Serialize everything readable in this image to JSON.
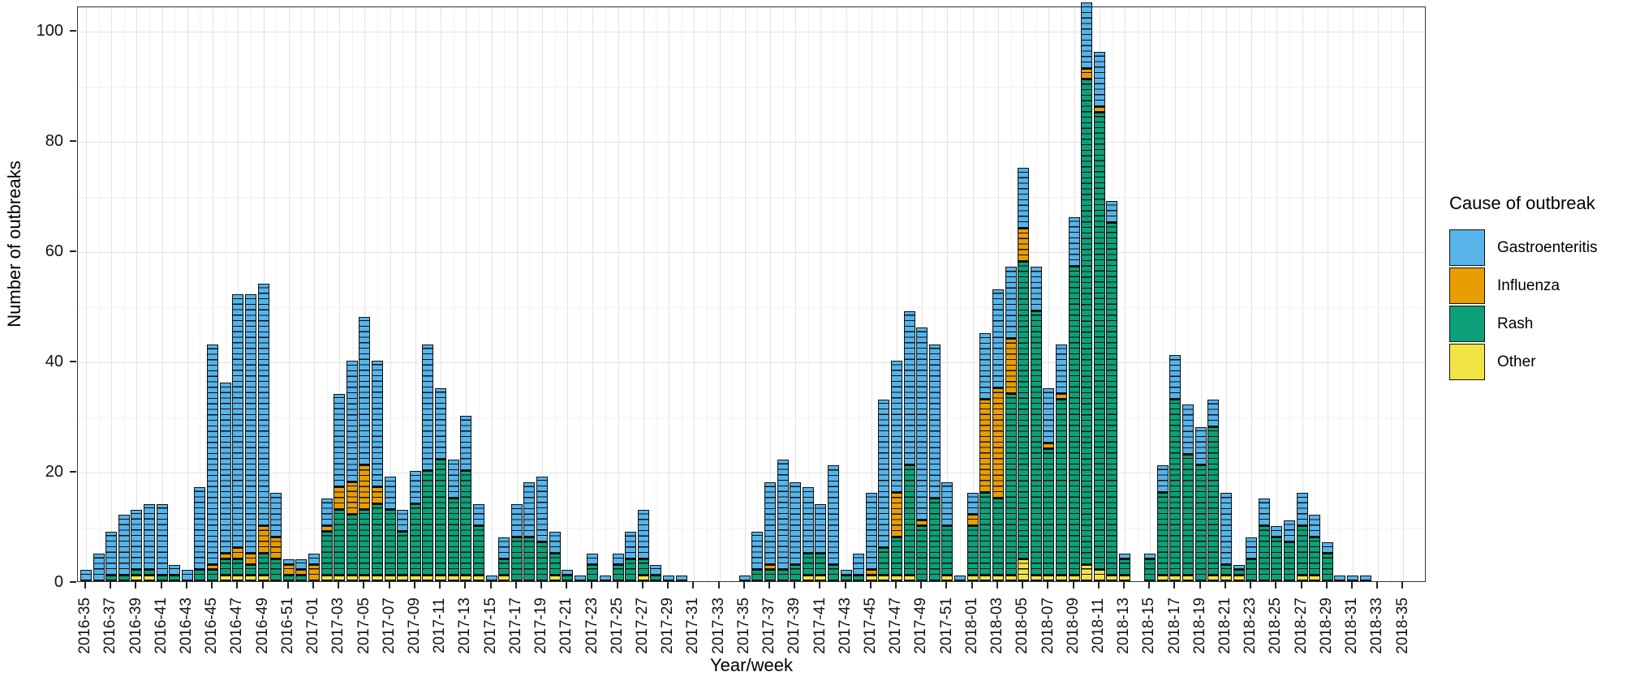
{
  "y_axis": {
    "title": "Number of outbreaks",
    "ticks": [
      "0",
      "20",
      "40",
      "60",
      "80",
      "100"
    ]
  },
  "x_axis": {
    "title": "Year/week"
  },
  "legend": {
    "title": "Cause of outbreak",
    "items": [
      {
        "label": "Gastroenteritis",
        "color": "#56B4E9"
      },
      {
        "label": "Influenza",
        "color": "#E89E00"
      },
      {
        "label": "Rash",
        "color": "#0CA178"
      },
      {
        "label": "Other",
        "color": "#F0E442"
      }
    ]
  },
  "chart_data": {
    "type": "bar",
    "stacked": true,
    "title": "",
    "xlabel": "Year/week",
    "ylabel": "Number of outbreaks",
    "ylim": [
      0,
      105
    ],
    "grid": "major 20 / minor 10, light gray on white, black panel border",
    "legend_position": "right",
    "stack_order_bottom_to_top": [
      "Other",
      "Rash",
      "Influenza",
      "Gastroenteritis"
    ],
    "x_tick_labels_every": 2,
    "categories": [
      "2016-35",
      "2016-36",
      "2016-37",
      "2016-38",
      "2016-39",
      "2016-40",
      "2016-41",
      "2016-42",
      "2016-43",
      "2016-44",
      "2016-45",
      "2016-46",
      "2016-47",
      "2016-48",
      "2016-49",
      "2016-50",
      "2016-51",
      "2016-52",
      "2017-01",
      "2017-02",
      "2017-03",
      "2017-04",
      "2017-05",
      "2017-06",
      "2017-07",
      "2017-08",
      "2017-09",
      "2017-10",
      "2017-11",
      "2017-12",
      "2017-13",
      "2017-14",
      "2017-15",
      "2017-16",
      "2017-17",
      "2017-18",
      "2017-19",
      "2017-20",
      "2017-21",
      "2017-22",
      "2017-23",
      "2017-24",
      "2017-25",
      "2017-26",
      "2017-27",
      "2017-28",
      "2017-29",
      "2017-30",
      "2017-31",
      "2017-32",
      "2017-33",
      "2017-34",
      "2017-35",
      "2017-36",
      "2017-37",
      "2017-38",
      "2017-39",
      "2017-40",
      "2017-41",
      "2017-42",
      "2017-43",
      "2017-44",
      "2017-45",
      "2017-46",
      "2017-47",
      "2017-48",
      "2017-49",
      "2017-50",
      "2017-51",
      "2017-52",
      "2018-01",
      "2018-02",
      "2018-03",
      "2018-04",
      "2018-05",
      "2018-06",
      "2018-07",
      "2018-08",
      "2018-09",
      "2018-10",
      "2018-11",
      "2018-12",
      "2018-13",
      "2018-14",
      "2018-15",
      "2018-16",
      "2018-17",
      "2018-18",
      "2018-19",
      "2018-20",
      "2018-21",
      "2018-22",
      "2018-23",
      "2018-24",
      "2018-25",
      "2018-26",
      "2018-27",
      "2018-28",
      "2018-29",
      "2018-30",
      "2018-31",
      "2018-32",
      "2018-33",
      "2018-34",
      "2018-35"
    ],
    "series": [
      {
        "name": "Gastroenteritis",
        "color": "#56B4E9",
        "values": [
          2,
          5,
          8,
          11,
          11,
          12,
          13,
          2,
          2,
          15,
          40,
          31,
          46,
          47,
          44,
          8,
          1,
          2,
          2,
          5,
          17,
          22,
          27,
          23,
          6,
          4,
          6,
          23,
          13,
          7,
          10,
          4,
          1,
          4,
          6,
          10,
          12,
          4,
          1,
          1,
          2,
          1,
          2,
          5,
          9,
          2,
          1,
          1,
          0,
          0,
          0,
          0,
          1,
          7,
          15,
          20,
          15,
          12,
          9,
          18,
          1,
          4,
          14,
          27,
          24,
          28,
          35,
          28,
          8,
          1,
          4,
          12,
          18,
          13,
          11,
          8,
          10,
          9,
          9,
          12,
          10,
          4,
          1,
          0,
          1,
          5,
          8,
          9,
          7,
          5,
          13,
          1,
          4,
          5,
          2,
          4,
          6,
          4,
          2,
          1,
          1,
          1,
          0,
          0,
          0
        ]
      },
      {
        "name": "Influenza",
        "color": "#E89E00",
        "values": [
          0,
          0,
          0,
          0,
          0,
          0,
          0,
          0,
          0,
          0,
          1,
          1,
          2,
          2,
          5,
          4,
          2,
          1,
          3,
          1,
          4,
          6,
          8,
          3,
          0,
          0,
          0,
          0,
          0,
          0,
          0,
          0,
          0,
          0,
          0,
          0,
          0,
          0,
          0,
          0,
          0,
          0,
          0,
          0,
          0,
          0,
          0,
          0,
          0,
          0,
          0,
          0,
          0,
          0,
          1,
          0,
          0,
          0,
          0,
          0,
          0,
          0,
          1,
          0,
          8,
          0,
          1,
          0,
          0,
          0,
          2,
          17,
          20,
          10,
          6,
          0,
          1,
          1,
          0,
          2,
          1,
          0,
          0,
          0,
          0,
          0,
          0,
          0,
          0,
          0,
          0,
          0,
          0,
          0,
          0,
          0,
          0,
          0,
          0,
          0,
          0,
          0,
          0,
          0,
          0
        ]
      },
      {
        "name": "Rash",
        "color": "#0CA178",
        "values": [
          0,
          0,
          1,
          1,
          1,
          1,
          1,
          1,
          0,
          2,
          2,
          3,
          3,
          2,
          4,
          4,
          1,
          1,
          0,
          8,
          12,
          11,
          12,
          13,
          12,
          8,
          13,
          19,
          21,
          14,
          19,
          9,
          0,
          3,
          8,
          8,
          7,
          4,
          1,
          0,
          3,
          0,
          3,
          4,
          3,
          1,
          0,
          0,
          0,
          0,
          0,
          0,
          0,
          2,
          2,
          2,
          3,
          4,
          4,
          3,
          1,
          1,
          0,
          5,
          7,
          20,
          10,
          15,
          9,
          0,
          9,
          15,
          14,
          33,
          54,
          48,
          23,
          32,
          56,
          88,
          83,
          64,
          3,
          0,
          4,
          15,
          32,
          22,
          21,
          27,
          2,
          1,
          4,
          10,
          8,
          7,
          9,
          7,
          5,
          0,
          0,
          0,
          0,
          0,
          0
        ]
      },
      {
        "name": "Other",
        "color": "#F0E442",
        "values": [
          0,
          0,
          0,
          0,
          1,
          1,
          0,
          0,
          0,
          0,
          0,
          1,
          1,
          1,
          1,
          0,
          0,
          0,
          0,
          1,
          1,
          1,
          1,
          1,
          1,
          1,
          1,
          1,
          1,
          1,
          1,
          1,
          0,
          1,
          0,
          0,
          0,
          1,
          0,
          0,
          0,
          0,
          0,
          0,
          1,
          0,
          0,
          0,
          0,
          0,
          0,
          0,
          0,
          0,
          0,
          0,
          0,
          1,
          1,
          0,
          0,
          0,
          1,
          1,
          1,
          1,
          0,
          0,
          1,
          0,
          1,
          1,
          1,
          1,
          4,
          1,
          1,
          1,
          1,
          3,
          2,
          1,
          1,
          0,
          0,
          1,
          1,
          1,
          0,
          1,
          1,
          1,
          0,
          0,
          0,
          0,
          1,
          1,
          0,
          0,
          0,
          0,
          0,
          0,
          0
        ]
      }
    ]
  }
}
